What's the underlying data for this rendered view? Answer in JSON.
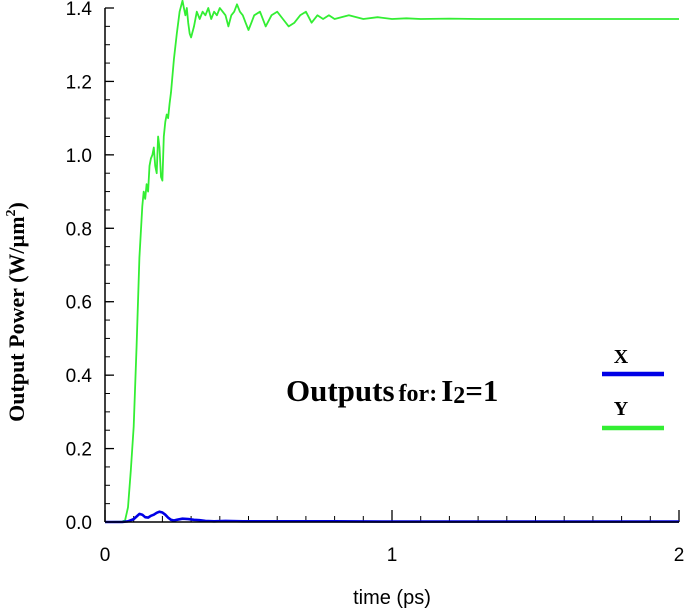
{
  "chart_data": {
    "type": "line",
    "title": "",
    "xlabel": "time (ps)",
    "ylabel": {
      "text": "Output Power (W/µm",
      "superscript": "2",
      "suffix": ")"
    },
    "xlim": [
      0,
      2
    ],
    "ylim": [
      0,
      1.4
    ],
    "x_ticks": [
      0,
      1,
      2
    ],
    "x_tick_labels": [
      "0",
      "1",
      "2"
    ],
    "y_ticks": [
      0.0,
      0.2,
      0.4,
      0.6,
      0.8,
      1.0,
      1.2,
      1.4
    ],
    "y_tick_labels": [
      "0.0",
      "0.2",
      "0.4",
      "0.6",
      "0.8",
      "1.0",
      "1.2",
      "1.4"
    ],
    "grid": false,
    "legend_position": "right",
    "annotation": {
      "main": "Outputs",
      "for": "for:",
      "var": "I",
      "subscript": "2",
      "rest": "=1"
    },
    "series": [
      {
        "name": "X",
        "color": "#0000e6",
        "x": [
          0,
          0.06,
          0.08,
          0.1,
          0.11,
          0.12,
          0.13,
          0.14,
          0.15,
          0.16,
          0.17,
          0.18,
          0.19,
          0.2,
          0.21,
          0.22,
          0.23,
          0.24,
          0.25,
          0.27,
          0.29,
          0.31,
          0.33,
          0.35,
          0.38,
          0.42,
          0.48,
          0.6,
          0.8,
          1.0,
          1.5,
          2.0
        ],
        "values": [
          0,
          0,
          0.002,
          0.008,
          0.015,
          0.022,
          0.02,
          0.013,
          0.012,
          0.017,
          0.02,
          0.025,
          0.028,
          0.026,
          0.02,
          0.012,
          0.006,
          0.004,
          0.006,
          0.009,
          0.008,
          0.006,
          0.005,
          0.003,
          0.002,
          0.003,
          0.002,
          0.002,
          0.002,
          0.001,
          0.001,
          0.001
        ]
      },
      {
        "name": "Y",
        "color": "#33ee33",
        "x": [
          0,
          0.06,
          0.07,
          0.08,
          0.09,
          0.1,
          0.11,
          0.12,
          0.13,
          0.135,
          0.14,
          0.145,
          0.15,
          0.155,
          0.16,
          0.165,
          0.17,
          0.175,
          0.18,
          0.185,
          0.19,
          0.195,
          0.2,
          0.205,
          0.21,
          0.215,
          0.22,
          0.225,
          0.23,
          0.24,
          0.25,
          0.26,
          0.27,
          0.275,
          0.28,
          0.285,
          0.29,
          0.295,
          0.3,
          0.31,
          0.32,
          0.33,
          0.34,
          0.35,
          0.36,
          0.37,
          0.38,
          0.39,
          0.4,
          0.41,
          0.42,
          0.43,
          0.44,
          0.45,
          0.46,
          0.47,
          0.48,
          0.49,
          0.5,
          0.51,
          0.52,
          0.54,
          0.56,
          0.58,
          0.6,
          0.62,
          0.64,
          0.66,
          0.68,
          0.7,
          0.72,
          0.74,
          0.76,
          0.78,
          0.8,
          0.85,
          0.9,
          0.95,
          1.0,
          1.05,
          1.1,
          1.2,
          1.3,
          1.4,
          1.5,
          1.6,
          1.7,
          1.8,
          1.9,
          2.0
        ],
        "values": [
          0,
          0.001,
          0.005,
          0.04,
          0.14,
          0.26,
          0.48,
          0.72,
          0.86,
          0.9,
          0.88,
          0.92,
          0.9,
          0.97,
          0.99,
          1.0,
          1.02,
          0.97,
          0.95,
          1.05,
          1.02,
          0.94,
          0.93,
          1.05,
          1.09,
          1.11,
          1.1,
          1.14,
          1.17,
          1.26,
          1.33,
          1.39,
          1.42,
          1.4,
          1.38,
          1.4,
          1.36,
          1.33,
          1.32,
          1.35,
          1.39,
          1.37,
          1.39,
          1.38,
          1.4,
          1.37,
          1.39,
          1.38,
          1.4,
          1.39,
          1.38,
          1.35,
          1.38,
          1.39,
          1.41,
          1.39,
          1.38,
          1.36,
          1.34,
          1.36,
          1.38,
          1.39,
          1.35,
          1.38,
          1.39,
          1.37,
          1.35,
          1.36,
          1.38,
          1.39,
          1.36,
          1.38,
          1.37,
          1.38,
          1.37,
          1.38,
          1.37,
          1.375,
          1.37,
          1.372,
          1.37,
          1.371,
          1.37,
          1.37,
          1.37,
          1.37,
          1.37,
          1.37,
          1.37,
          1.37
        ]
      }
    ]
  }
}
